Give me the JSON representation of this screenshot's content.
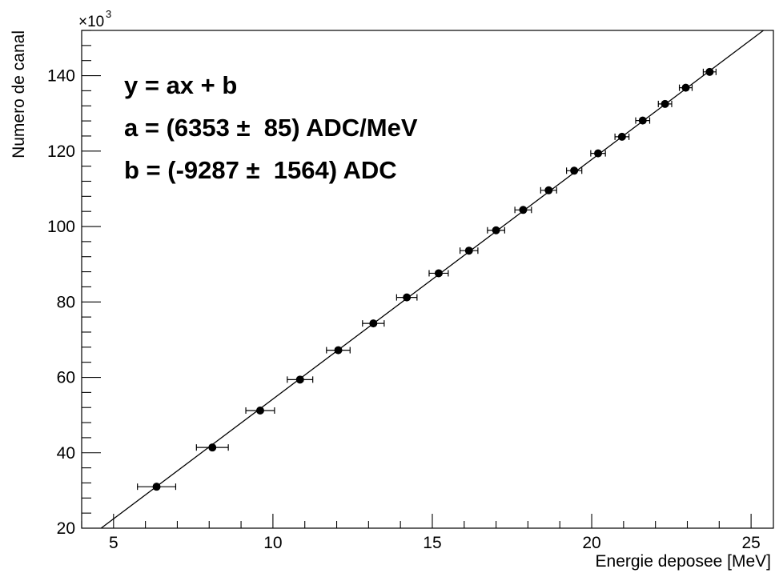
{
  "chart_data": {
    "type": "scatter",
    "xlabel": "Energie deposee [MeV]",
    "ylabel": "Numero de canal",
    "y_multiplier": "×10",
    "y_multiplier_exponent": "3",
    "xlim": [
      4.0,
      25.7
    ],
    "ylim": [
      20,
      152
    ],
    "x_ticks": [
      5,
      10,
      15,
      20,
      25
    ],
    "y_ticks": [
      20,
      40,
      60,
      80,
      100,
      120,
      140
    ],
    "grid": false,
    "fit_line": {
      "slope": 6.353,
      "intercept": -9.287
    },
    "annotations": [
      "y = ax + b",
      "a = (6353 ±  85) ADC/MeV",
      "b = (-9287 ±  1564) ADC"
    ],
    "series": [
      {
        "points": [
          {
            "x": 6.35,
            "y": 31.0,
            "xerr": 0.6
          },
          {
            "x": 8.1,
            "y": 41.4,
            "xerr": 0.5
          },
          {
            "x": 9.6,
            "y": 51.2,
            "xerr": 0.45
          },
          {
            "x": 10.85,
            "y": 59.4,
            "xerr": 0.4
          },
          {
            "x": 12.05,
            "y": 67.2,
            "xerr": 0.37
          },
          {
            "x": 13.15,
            "y": 74.3,
            "xerr": 0.34
          },
          {
            "x": 14.2,
            "y": 81.2,
            "xerr": 0.32
          },
          {
            "x": 15.2,
            "y": 87.6,
            "xerr": 0.3
          },
          {
            "x": 16.15,
            "y": 93.6,
            "xerr": 0.28
          },
          {
            "x": 17.0,
            "y": 99.0,
            "xerr": 0.27
          },
          {
            "x": 17.85,
            "y": 104.4,
            "xerr": 0.26
          },
          {
            "x": 18.65,
            "y": 109.6,
            "xerr": 0.25
          },
          {
            "x": 19.45,
            "y": 114.8,
            "xerr": 0.24
          },
          {
            "x": 20.2,
            "y": 119.4,
            "xerr": 0.23
          },
          {
            "x": 20.95,
            "y": 123.8,
            "xerr": 0.22
          },
          {
            "x": 21.6,
            "y": 128.1,
            "xerr": 0.22
          },
          {
            "x": 22.3,
            "y": 132.5,
            "xerr": 0.21
          },
          {
            "x": 22.95,
            "y": 136.8,
            "xerr": 0.2
          },
          {
            "x": 23.7,
            "y": 141.0,
            "xerr": 0.2
          }
        ]
      }
    ]
  }
}
